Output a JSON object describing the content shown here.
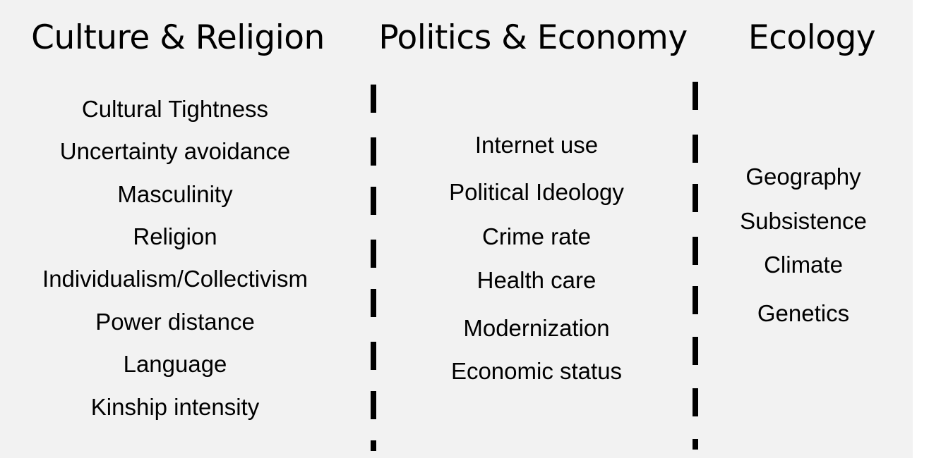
{
  "columns": [
    {
      "heading": "Culture & Religion",
      "items": [
        "Cultural Tightness",
        "Uncertainty avoidance",
        "Masculinity",
        "Religion",
        "Individualism/Collectivism",
        "Power distance",
        "Language",
        "Kinship intensity"
      ]
    },
    {
      "heading": "Politics & Economy",
      "items": [
        "Internet use",
        "Political Ideology",
        "Crime rate",
        "Health care",
        "Modernization",
        "Economic status"
      ]
    },
    {
      "heading": "Ecology",
      "items": [
        "Geography",
        "Subsistence",
        "Climate",
        "Genetics"
      ]
    }
  ],
  "colors": {
    "panel_background": "#f2f2f2",
    "text": "#000000",
    "divider": "#000000"
  }
}
